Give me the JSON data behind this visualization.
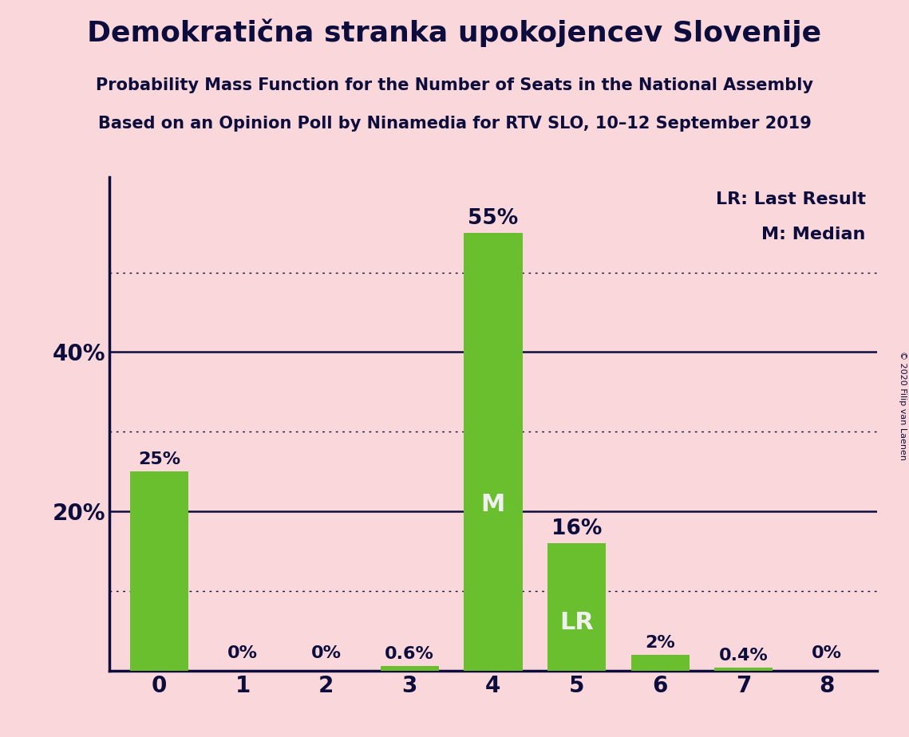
{
  "title": "Demokratična stranka upokojencev Slovenije",
  "subtitle1": "Probability Mass Function for the Number of Seats in the National Assembly",
  "subtitle2": "Based on an Opinion Poll by Ninamedia for RTV SLO, 10–12 September 2019",
  "copyright": "© 2020 Filip van Laenen",
  "categories": [
    0,
    1,
    2,
    3,
    4,
    5,
    6,
    7,
    8
  ],
  "values": [
    25,
    0,
    0,
    0.6,
    55,
    16,
    2,
    0.4,
    0
  ],
  "labels": [
    "25%",
    "0%",
    "0%",
    "0.6%",
    "55%",
    "16%",
    "2%",
    "0.4%",
    "0%"
  ],
  "bar_color": "#6abf2e",
  "background_color": "#f9d7da",
  "title_color": "#0d0d3d",
  "axis_color": "#0d0d3d",
  "label_color_outside": "#0d0d3d",
  "label_color_inside": "#f0f0f0",
  "median_bar": 4,
  "lr_bar": 5,
  "median_label": "M",
  "lr_label": "LR",
  "ylim": [
    0,
    62
  ],
  "ytick_labeled": [
    20,
    40
  ],
  "ytick_labeled_labels": [
    "20%",
    "40%"
  ],
  "dotted_lines": [
    10,
    30,
    50
  ],
  "solid_lines": [
    20,
    40
  ],
  "title_fontsize": 26,
  "subtitle_fontsize": 15,
  "label_fontsize": 16,
  "axis_tick_fontsize": 20,
  "legend_fontsize": 16,
  "inside_label_fontsize": 22
}
